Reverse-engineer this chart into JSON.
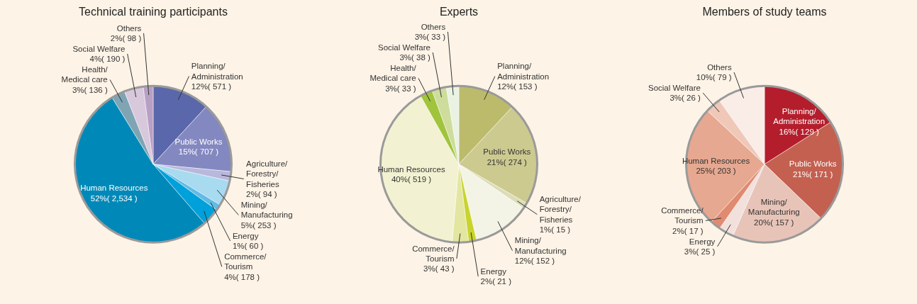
{
  "chart_data": [
    {
      "type": "pie",
      "title": "Technical training participants",
      "categories": [
        "Planning/Administration",
        "Public Works",
        "Agriculture/Forestry/Fisheries",
        "Mining/Manufacturing",
        "Energy",
        "Commerce/Tourism",
        "Human Resources",
        "Health/Medical care",
        "Social Welfare",
        "Others"
      ],
      "values": [
        571,
        707,
        94,
        253,
        60,
        178,
        2534,
        136,
        190,
        98
      ],
      "value_labels": [
        "12%( 571 )",
        "15%( 707 )",
        "2%( 94 )",
        "5%( 253 )",
        "1%( 60 )",
        "4%( 178 )",
        "52%( 2,534 )",
        "3%( 136 )",
        "4%( 190 )",
        "2%( 98 )"
      ],
      "colors": [
        "#5a67aa",
        "#8488c0",
        "#b8b8dc",
        "#a8daf0",
        "#60bce6",
        "#00a0da",
        "#0089b8",
        "#7fa5b5",
        "#d8c8dc",
        "#b8a0c4"
      ]
    },
    {
      "type": "pie",
      "title": "Experts",
      "categories": [
        "Planning/Administration",
        "Public Works",
        "Agriculture/Forestry/Fisheries",
        "Mining/Manufacturing",
        "Energy",
        "Commerce/Tourism",
        "Human Resources",
        "Health/Medical care",
        "Social Welfare",
        "Others"
      ],
      "values": [
        153,
        274,
        15,
        152,
        21,
        43,
        519,
        33,
        38,
        33
      ],
      "value_labels": [
        "12%( 153 )",
        "21%( 274 )",
        "1%( 15 )",
        "12%( 152 )",
        "2%( 21 )",
        "3%( 43 )",
        "40%( 519 )",
        "3%( 33 )",
        "3%( 38 )",
        "3%( 33 )"
      ],
      "colors": [
        "#bcbb6c",
        "#cdca90",
        "#dcdcb8",
        "#f4f4e6",
        "#c8d42c",
        "#e2e6a0",
        "#f2f2d2",
        "#a0c43c",
        "#cedc9c",
        "#eaf2e4"
      ]
    },
    {
      "type": "pie",
      "title": "Members of study teams",
      "categories": [
        "Planning/Administration",
        "Public Works",
        "Mining/Manufacturing",
        "Energy",
        "Commerce/Tourism",
        "Human Resources",
        "Social Welfare",
        "Others"
      ],
      "values": [
        129,
        171,
        157,
        25,
        17,
        203,
        26,
        79
      ],
      "value_labels": [
        "16%( 129 )",
        "21%( 171 )",
        "20%( 157 )",
        "3%( 25 )",
        "2%( 17 )",
        "25%( 203 )",
        "3%( 26 )",
        "10%( 79 )"
      ],
      "colors": [
        "#b41e2c",
        "#c46050",
        "#e8c4b8",
        "#f2e0dc",
        "#e08a70",
        "#e6a890",
        "#f0c8b8",
        "#faece6"
      ]
    }
  ]
}
